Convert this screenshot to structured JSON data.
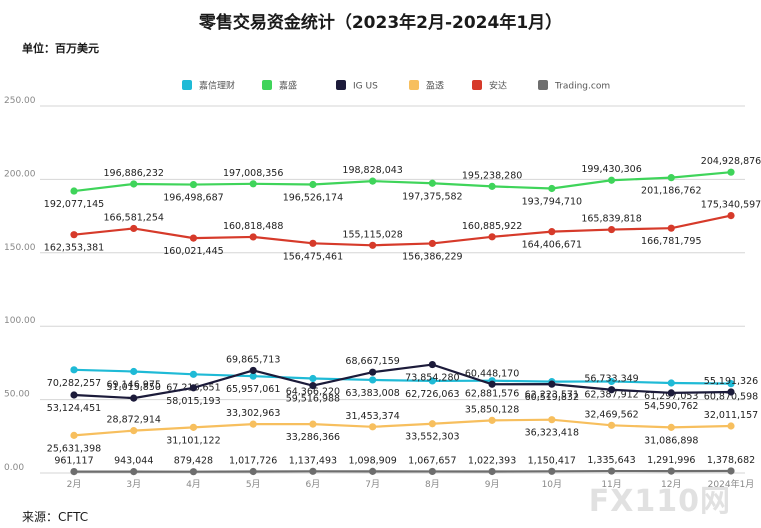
{
  "title": "零售交易资金统计（2023年2月-2024年1月）",
  "unit_label": "单位：百万美元",
  "source_label": "来源：CFTC",
  "watermark": "FX110网",
  "chart_data": {
    "type": "line",
    "title": "零售交易资金统计（2023年2月-2024年1月）",
    "ylabel": "单位：百万美元",
    "ylim": [
      0,
      250
    ],
    "yticks": [
      "0.00",
      "50.00",
      "100.00",
      "150.00",
      "200.00",
      "250.00"
    ],
    "ytick_values": [
      0,
      50,
      100,
      150,
      200,
      250
    ],
    "categories": [
      "2月",
      "3月",
      "4月",
      "5月",
      "6月",
      "7月",
      "8月",
      "9月",
      "10月",
      "11月",
      "12月",
      "2024年1月"
    ],
    "legend_position": "top-center",
    "series": [
      {
        "name": "嘉信理财",
        "color": "#1fbad6",
        "label_pos": "below",
        "values": [
          70.282257,
          69.146975,
          67.216651,
          65.957061,
          64.36622,
          63.383008,
          62.726063,
          62.881576,
          62.223571,
          62.387912,
          61.297053,
          60.870598
        ],
        "labels": [
          "70,282,257",
          "69,146,975",
          "67,216,651",
          "65,957,061",
          "64,366,220",
          "63,383,008",
          "62,726,063",
          "62,881,576",
          "62,223,571",
          "62,387,912",
          "61,297,053",
          "60,870,598"
        ]
      },
      {
        "name": "嘉盛",
        "color": "#3fd45a",
        "label_pos": "alt",
        "values": [
          192.077145,
          196.886232,
          196.498687,
          197.008356,
          196.526174,
          198.828043,
          197.375582,
          195.23828,
          193.79471,
          199.430306,
          201.186762,
          204.928876
        ],
        "labels": [
          "192,077,145",
          "196,886,232",
          "196,498,687",
          "197,008,356",
          "196,526,174",
          "198,828,043",
          "197,375,582",
          "195,238,280",
          "193,794,710",
          "199,430,306",
          "201,186,762",
          "204,928,876"
        ]
      },
      {
        "name": "IG US",
        "color": "#1c1b3a",
        "label_pos": "alt",
        "values": [
          53.124451,
          51.01585,
          58.015193,
          69.865713,
          59.516988,
          68.667159,
          73.85428,
          60.44817,
          60.519832,
          56.733349,
          54.590762,
          55.191326
        ],
        "labels": [
          "53,124,451",
          "51,015,850",
          "58,015,193",
          "69,865,713",
          "59,516,988",
          "68,667,159",
          "73,854,280",
          "60,448,170",
          "60,519,832",
          "56,733,349",
          "54,590,762",
          "55,191,326"
        ]
      },
      {
        "name": "盈透",
        "color": "#f7bf5e",
        "label_pos": "alt",
        "values": [
          25.631398,
          28.872914,
          31.101122,
          33.302963,
          33.286366,
          31.453374,
          33.552303,
          35.850128,
          36.323418,
          32.469562,
          31.086898,
          32.011157
        ],
        "labels": [
          "25,631,398",
          "28,872,914",
          "31,101,122",
          "33,302,963",
          "33,286,366",
          "31,453,374",
          "33,552,303",
          "35,850,128",
          "36,323,418",
          "32,469,562",
          "31,086,898",
          "32,011,157"
        ]
      },
      {
        "name": "安达",
        "color": "#d63a2a",
        "label_pos": "alt",
        "values": [
          162.353381,
          166.581254,
          160.021445,
          160.818488,
          156.475461,
          155.115028,
          156.386229,
          160.885922,
          164.406671,
          165.839818,
          166.781795,
          175.340597
        ],
        "labels": [
          "162,353,381",
          "166,581,254",
          "160,021,445",
          "160,818,488",
          "156,475,461",
          "155,115,028",
          "156,386,229",
          "160,885,922",
          "164,406,671",
          "165,839,818",
          "166,781,795",
          "175,340,597"
        ]
      },
      {
        "name": "Trading.com",
        "color": "#6e6e6e",
        "label_pos": "above",
        "values": [
          0.961117,
          0.943044,
          0.879428,
          1.017726,
          1.137493,
          1.098909,
          1.067657,
          1.022393,
          1.150417,
          1.335643,
          1.291996,
          1.378682
        ],
        "labels": [
          "961,117",
          "943,044",
          "879,428",
          "1,017,726",
          "1,137,493",
          "1,098,909",
          "1,067,657",
          "1,022,393",
          "1,150,417",
          "1,335,643",
          "1,291,996",
          "1,378,682"
        ]
      }
    ]
  }
}
